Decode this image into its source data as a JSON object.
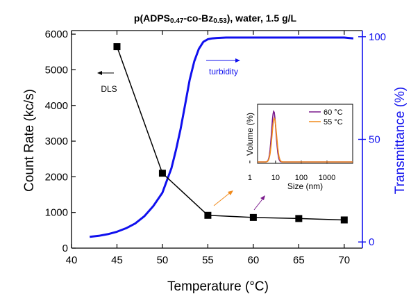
{
  "chart_data": {
    "type": "line",
    "title": {
      "polymer_prefix": "p(ADPS",
      "sub1": "0.47",
      "mid": "-co-Bz",
      "sub2": "0.53",
      "suffix": "), water, 1.5 g/L"
    },
    "xlabel": "Temperature (°C)",
    "ylabel_left": "Count Rate (kc/s)",
    "ylabel_right": "Transmittance (%)",
    "xlim": [
      40,
      72
    ],
    "ylim_left": [
      0,
      6100
    ],
    "ylim_right": [
      -3,
      103
    ],
    "x_ticks": [
      40,
      45,
      50,
      55,
      60,
      65,
      70
    ],
    "y_left_ticks": [
      0,
      1000,
      2000,
      3000,
      4000,
      5000,
      6000
    ],
    "y_right_ticks": [
      0,
      50,
      100
    ],
    "grid": false,
    "series": [
      {
        "axis": "left",
        "color": "#000000",
        "marker": "square",
        "x": [
          45,
          50,
          55,
          60,
          65,
          70
        ],
        "y": [
          5650,
          2100,
          920,
          860,
          830,
          790
        ]
      },
      {
        "axis": "right",
        "color": "#1010ee",
        "marker": "none",
        "x": [
          42,
          43,
          44,
          45,
          46,
          47,
          48,
          49,
          50,
          51,
          51.5,
          52,
          52.5,
          53,
          53.5,
          54,
          54.5,
          55,
          55.5,
          56,
          57,
          58,
          60,
          62,
          64,
          66,
          68,
          70,
          71
        ],
        "y": [
          2.5,
          3.0,
          3.8,
          5.0,
          6.7,
          9.0,
          12.5,
          17.5,
          24,
          36,
          45,
          55,
          67,
          79,
          88,
          94,
          97.5,
          98.8,
          99.2,
          99.4,
          99.6,
          99.6,
          99.6,
          99.6,
          99.6,
          99.6,
          99.6,
          99.6,
          99.2
        ]
      }
    ],
    "annotations": {
      "dls": "DLS",
      "turbidity": "turbidity"
    },
    "inset": {
      "ylabel": "Volume (%)",
      "xlabel": "Size (nm)",
      "x_ticks": [
        "1",
        "10",
        "100",
        "1000"
      ],
      "xlim_log": [
        0.3,
        4.0
      ],
      "series": [
        {
          "name": "60 °C",
          "color": "#7a1a8c",
          "center_log": 0.93,
          "width_log": 0.085,
          "peak": 1.0
        },
        {
          "name": "55 °C",
          "color": "#f08a1c",
          "center_log": 0.95,
          "width_log": 0.09,
          "peak": 0.86
        }
      ]
    }
  }
}
